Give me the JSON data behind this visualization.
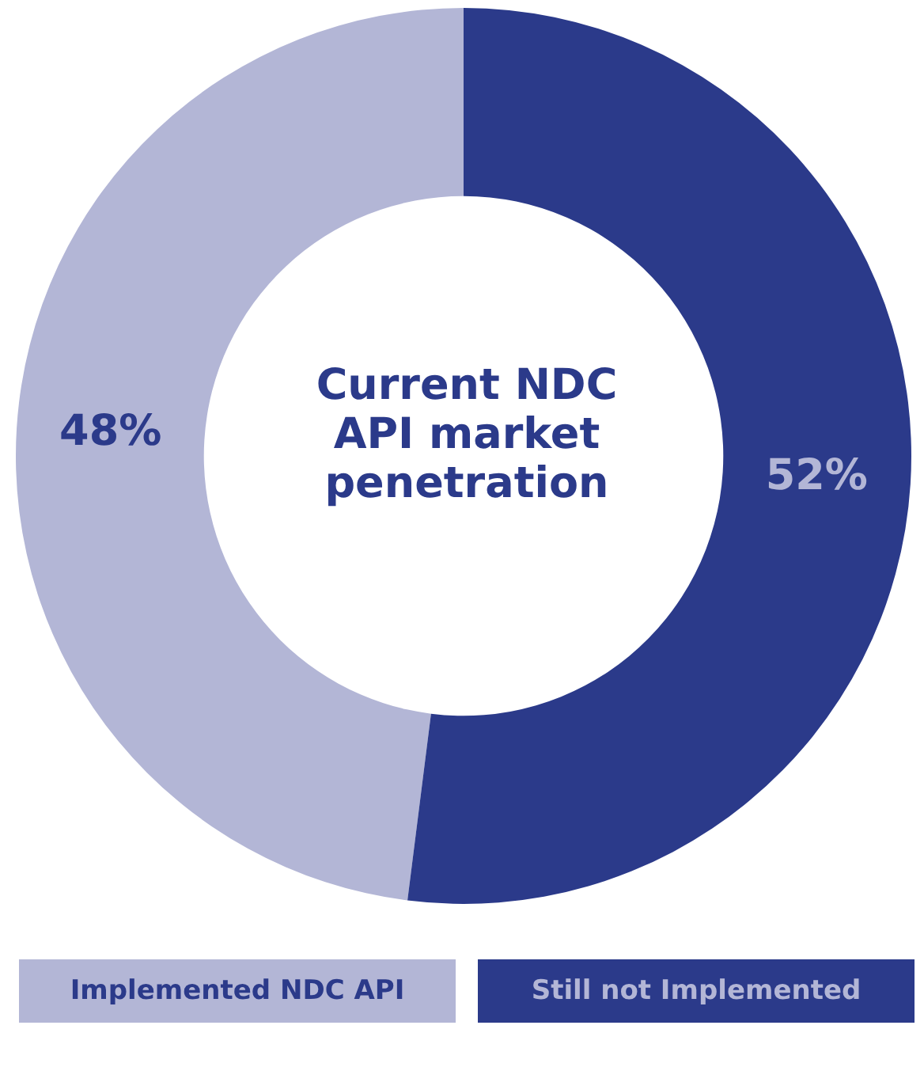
{
  "chart_data": {
    "type": "donut",
    "title": "Current NDC API market penetration",
    "categories": [
      "Implemented NDC API",
      "Still not Implemented"
    ],
    "values": [
      48,
      52
    ],
    "colors": [
      "#b3b6d6",
      "#2b3a8a"
    ],
    "value_labels": [
      "48%",
      "52%"
    ]
  }
}
